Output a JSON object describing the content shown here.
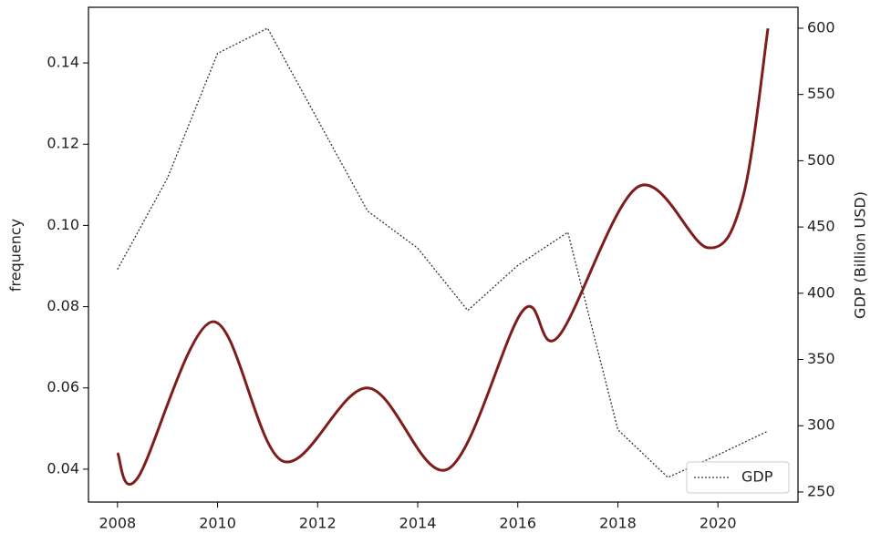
{
  "chart_data": {
    "type": "line",
    "ylabel": "frequency",
    "y2label": "GDP (Billion USD)",
    "xlim": [
      2007.42,
      2021.6
    ],
    "xticks": [
      2008,
      2010,
      2012,
      2014,
      2016,
      2018,
      2020
    ],
    "ylim": [
      0.0319,
      0.1537
    ],
    "yticks": [
      0.04,
      0.06,
      0.08,
      {
        "value": 0.1,
        "label": "0.10"
      },
      0.12,
      0.14
    ],
    "y2lim": [
      242.4,
      615.8
    ],
    "y2ticks": [
      250,
      300,
      350,
      400,
      450,
      500,
      550,
      600
    ],
    "legend": "lower right",
    "series": [
      {
        "color": "#7f1d1d",
        "style": "smooth",
        "x": [
          2008,
          2008.4,
          2009.9,
          2011.3,
          2013,
          2014.6,
          2016.1,
          2016.8,
          2018.4,
          2019.8,
          2020.5,
          2021
        ],
        "values": [
          0.044,
          0.0378,
          0.0763,
          0.042,
          0.06,
          0.04,
          0.079,
          0.0725,
          0.1095,
          0.0945,
          0.107,
          0.1485
        ]
      },
      {
        "name": "GDP",
        "color": "#333333",
        "style": "dotted",
        "axis": "y2",
        "x": [
          2008,
          2009,
          2010,
          2011,
          2012,
          2013,
          2014,
          2015,
          2016,
          2017,
          2018,
          2019,
          2020,
          2021
        ],
        "values": [
          418,
          487,
          581,
          600,
          531,
          462,
          434,
          387,
          421,
          446,
          297,
          261,
          278,
          296
        ]
      }
    ]
  }
}
